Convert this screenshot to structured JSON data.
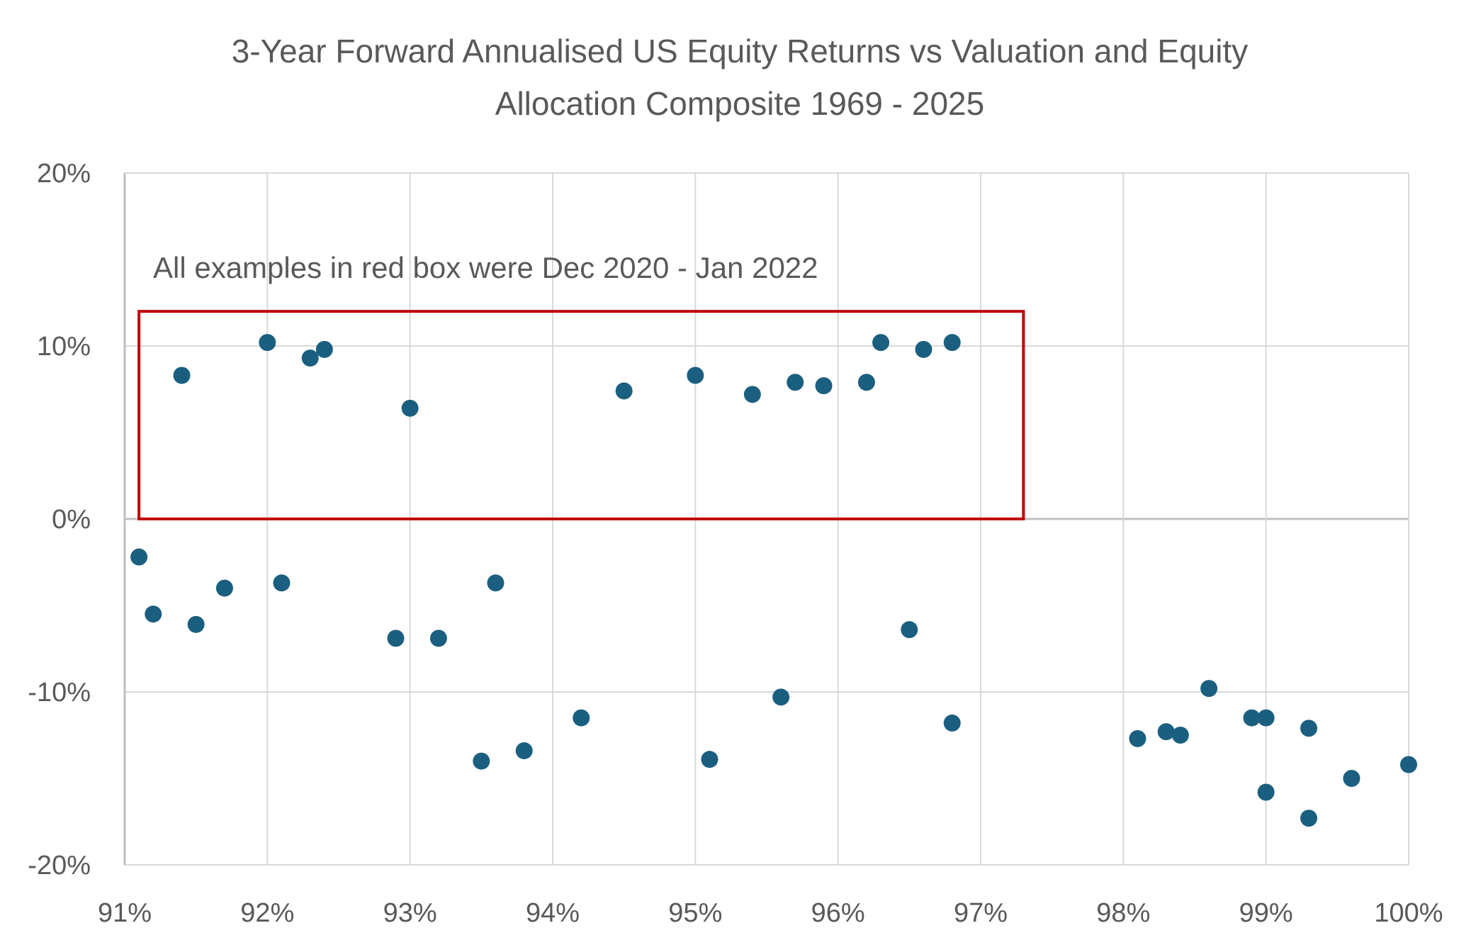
{
  "chart_data": {
    "type": "scatter",
    "title_lines": [
      "3-Year Forward Annualised US Equity Returns vs Valuation and Equity",
      "Allocation Composite 1969 - 2025"
    ],
    "xlabel": "",
    "ylabel": "",
    "xlim": [
      0.91,
      1.0
    ],
    "ylim": [
      -0.2,
      0.2
    ],
    "x_ticks": [
      0.91,
      0.92,
      0.93,
      0.94,
      0.95,
      0.96,
      0.97,
      0.98,
      0.99,
      1.0
    ],
    "x_tick_labels": [
      "91%",
      "92%",
      "93%",
      "94%",
      "95%",
      "96%",
      "97%",
      "98%",
      "99%",
      "100%"
    ],
    "y_ticks": [
      0.2,
      0.1,
      0.0,
      -0.1,
      -0.2
    ],
    "y_tick_labels": [
      "20%",
      "10%",
      "0%",
      "-10%",
      "-20%"
    ],
    "grid": true,
    "annotation": "All examples in red box were Dec 2020 - Jan 2022",
    "highlight_box": {
      "x": [
        0.911,
        0.973
      ],
      "y": [
        0.0,
        0.12
      ]
    },
    "colors": {
      "points": "#1B5F80",
      "box": "#C00000",
      "grid": "#D9D9D9",
      "axis": "#BFBFBF",
      "text": "#595959"
    },
    "series": [
      {
        "points": [
          [
            0.914,
            0.083
          ],
          [
            0.92,
            0.102
          ],
          [
            0.923,
            0.093
          ],
          [
            0.924,
            0.098
          ],
          [
            0.93,
            0.064
          ],
          [
            0.945,
            0.074
          ],
          [
            0.95,
            0.083
          ],
          [
            0.954,
            0.072
          ],
          [
            0.957,
            0.079
          ],
          [
            0.959,
            0.077
          ],
          [
            0.962,
            0.079
          ],
          [
            0.963,
            0.102
          ],
          [
            0.966,
            0.098
          ],
          [
            0.968,
            0.102
          ],
          [
            0.911,
            -0.022
          ],
          [
            0.912,
            -0.055
          ],
          [
            0.915,
            -0.061
          ],
          [
            0.917,
            -0.04
          ],
          [
            0.921,
            -0.037
          ],
          [
            0.929,
            -0.069
          ],
          [
            0.932,
            -0.069
          ],
          [
            0.935,
            -0.14
          ],
          [
            0.936,
            -0.037
          ],
          [
            0.938,
            -0.134
          ],
          [
            0.942,
            -0.115
          ],
          [
            0.951,
            -0.139
          ],
          [
            0.956,
            -0.103
          ],
          [
            0.965,
            -0.064
          ],
          [
            0.968,
            -0.118
          ],
          [
            0.981,
            -0.127
          ],
          [
            0.983,
            -0.123
          ],
          [
            0.984,
            -0.125
          ],
          [
            0.986,
            -0.098
          ],
          [
            0.989,
            -0.115
          ],
          [
            0.99,
            -0.115
          ],
          [
            0.99,
            -0.158
          ],
          [
            0.993,
            -0.121
          ],
          [
            0.993,
            -0.173
          ],
          [
            0.996,
            -0.15
          ],
          [
            1.0,
            -0.142
          ]
        ]
      }
    ]
  }
}
